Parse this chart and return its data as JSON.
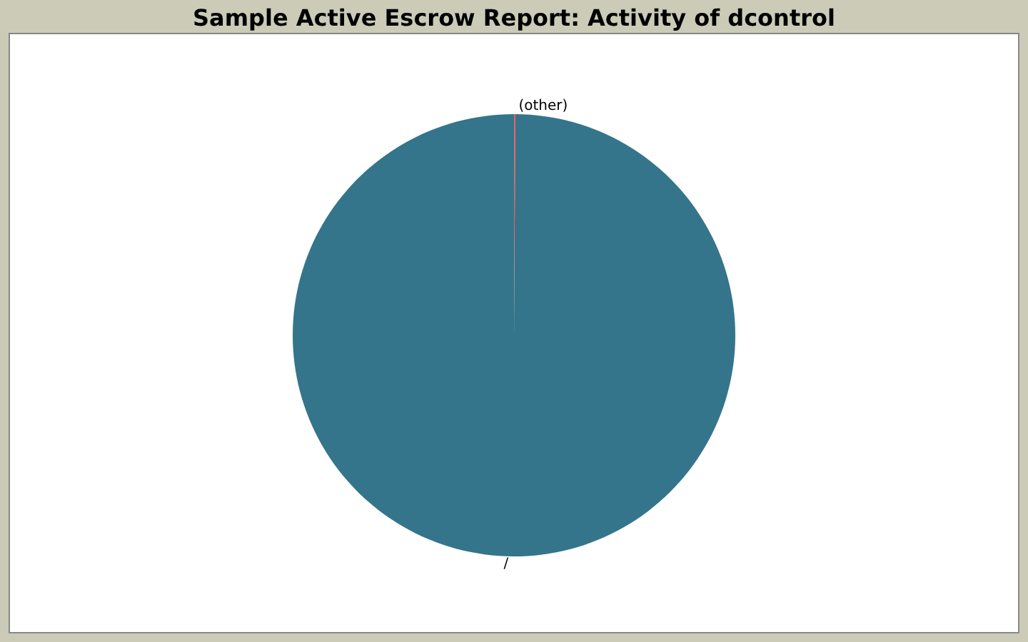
{
  "chart_data": {
    "type": "pie",
    "title": "Sample Active Escrow Report: Activity of dcontrol",
    "categories": [
      "(other)",
      "/"
    ],
    "values": [
      0.1,
      99.9
    ],
    "colors": [
      "#ff5555",
      "#34758b"
    ]
  }
}
